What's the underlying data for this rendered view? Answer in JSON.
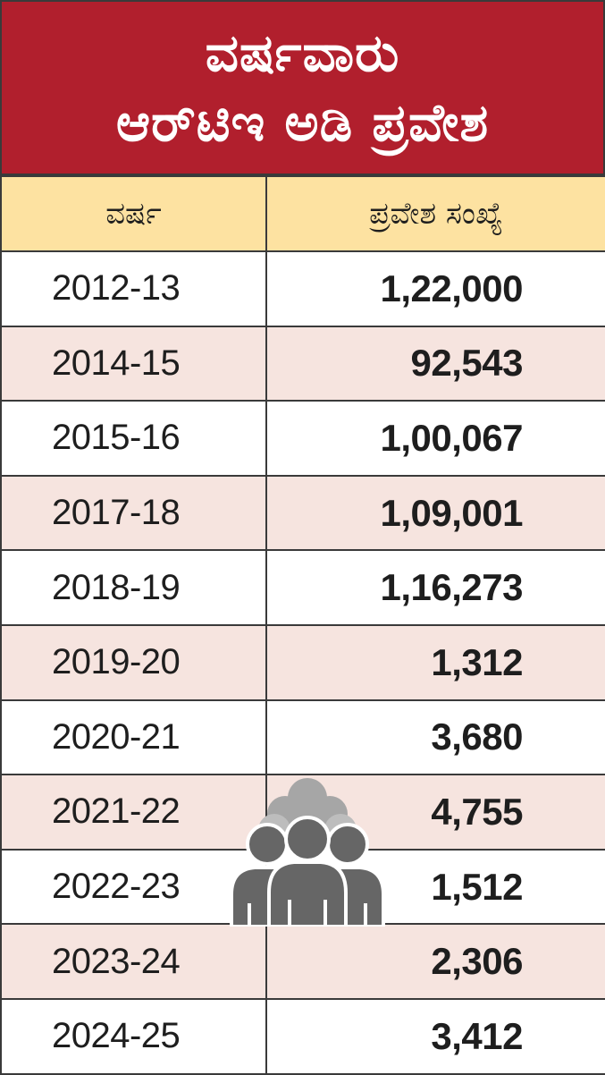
{
  "chart_data": {
    "type": "table",
    "title_lines": [
      "ವರ್ಷವಾರು",
      "ಆರ್‌ಟಿಇ ಅಡಿ ಪ್ರವೇಶ"
    ],
    "columns": [
      "ವರ್ಷ",
      "ಪ್ರವೇಶ ಸಂಖ್ಯೆ"
    ],
    "rows": [
      {
        "year": "2012-13",
        "admissions": "1,22,000",
        "value": 122000
      },
      {
        "year": "2014-15",
        "admissions": "92,543",
        "value": 92543
      },
      {
        "year": "2015-16",
        "admissions": "1,00,067",
        "value": 100067
      },
      {
        "year": "2017-18",
        "admissions": "1,09,001",
        "value": 109001
      },
      {
        "year": "2018-19",
        "admissions": "1,16,273",
        "value": 116273
      },
      {
        "year": "2019-20",
        "admissions": "1,312",
        "value": 1312
      },
      {
        "year": "2020-21",
        "admissions": "3,680",
        "value": 3680
      },
      {
        "year": "2021-22",
        "admissions": "4,755",
        "value": 4755
      },
      {
        "year": "2022-23",
        "admissions": "1,512",
        "value": 1512
      },
      {
        "year": "2023-24",
        "admissions": "2,306",
        "value": 2306
      },
      {
        "year": "2024-25",
        "admissions": "3,412",
        "value": 3412
      }
    ]
  },
  "colors": {
    "title_bg": "#b11f2d",
    "header_bg": "#fde2a1",
    "alt_row_bg": "#f6e4df",
    "border": "#3a3a3a",
    "icon_dark": "#666666",
    "icon_light": "#a6a6a6"
  },
  "decoration": {
    "icon": "people-group-icon"
  }
}
